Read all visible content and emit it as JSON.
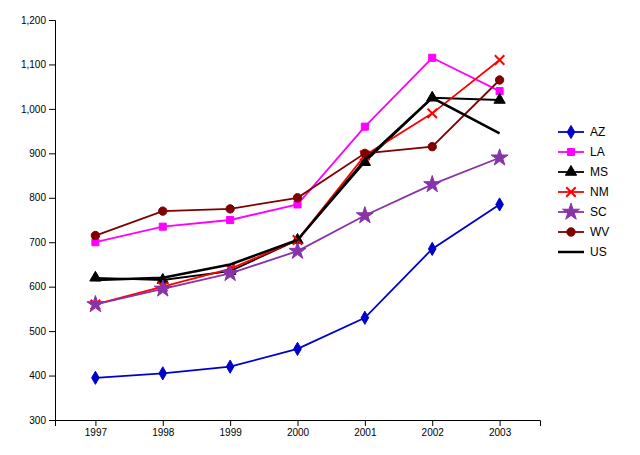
{
  "chart_data": {
    "type": "line",
    "x": [
      1997,
      1998,
      1999,
      2000,
      2001,
      2002,
      2003
    ],
    "series": [
      {
        "name": "AZ",
        "color": "#0000CC",
        "marker": "diamond",
        "values": [
          395,
          405,
          420,
          460,
          530,
          685,
          785
        ]
      },
      {
        "name": "LA",
        "color": "#FF00FF",
        "marker": "square",
        "values": [
          700,
          735,
          750,
          785,
          960,
          1115,
          1040
        ]
      },
      {
        "name": "MS",
        "color": "#000000",
        "marker": "triangle",
        "values": [
          620,
          615,
          635,
          705,
          880,
          1025,
          1020
        ]
      },
      {
        "name": "NM",
        "color": "#FF0000",
        "marker": "x",
        "values": [
          560,
          600,
          640,
          705,
          895,
          990,
          1110
        ]
      },
      {
        "name": "SC",
        "color": "#8833AA",
        "marker": "star",
        "values": [
          560,
          595,
          630,
          680,
          760,
          830,
          890
        ]
      },
      {
        "name": "WV",
        "color": "#800000",
        "marker": "circle",
        "values": [
          715,
          770,
          775,
          800,
          900,
          915,
          1065
        ]
      },
      {
        "name": "US",
        "color": "#000000",
        "marker": "none",
        "values": [
          615,
          620,
          650,
          705,
          885,
          1025,
          945
        ]
      }
    ],
    "xlim": [
      1996.4,
      2003.6
    ],
    "xticks": [
      1997,
      1998,
      1999,
      2000,
      2001,
      2002,
      2003
    ],
    "ylim": [
      300,
      1200
    ],
    "yticks": [
      300,
      400,
      500,
      600,
      700,
      800,
      900,
      {
        "value": 1000,
        "label": "1,000"
      },
      {
        "value": 1100,
        "label": "1,100"
      },
      {
        "value": 1200,
        "label": "1,200"
      }
    ],
    "grid": false,
    "legend": "right"
  }
}
